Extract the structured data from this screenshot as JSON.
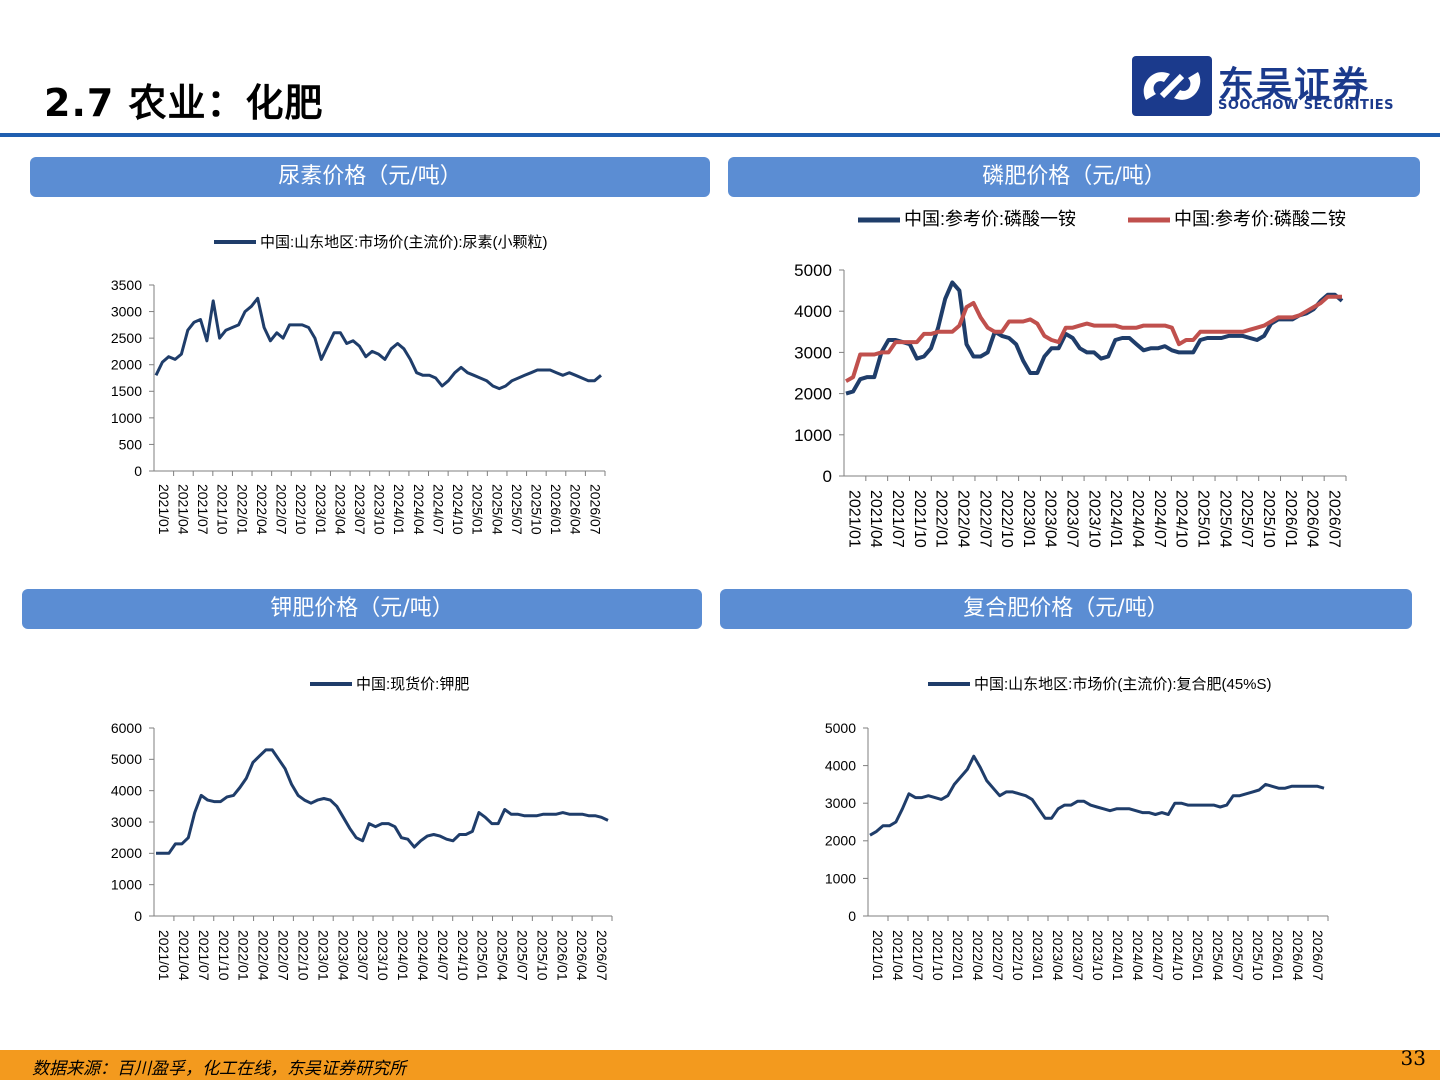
{
  "page": {
    "title": "2.7 农业：化肥",
    "logo_cn": "东吴证券",
    "logo_en": "SOOCHOW SECURITIES",
    "source": "数据来源：百川盈孚，化工在线，东吴证券研究所",
    "page_number": "33"
  },
  "panels": [
    {
      "header": "尿素价格（元/吨）"
    },
    {
      "header": "磷肥价格（元/吨）"
    },
    {
      "header": "钾肥价格（元/吨）"
    },
    {
      "header": "复合肥价格（元/吨）"
    }
  ],
  "colors": {
    "navy": "#1f3d6a",
    "red": "#c0504d",
    "header": "#5b8dd3",
    "footer": "#f39a1e"
  },
  "chart_data": [
    {
      "type": "line",
      "ylim": [
        0,
        3500
      ],
      "yticks": [
        "0",
        "500",
        "1000",
        "1500",
        "2000",
        "2500",
        "3000",
        "3500"
      ],
      "xticks": [
        "2021/01",
        "2021/04",
        "2021/07",
        "2021/10",
        "2022/01",
        "2022/04",
        "2022/07",
        "2022/10",
        "2023/01",
        "2023/04",
        "2023/07",
        "2023/10",
        "2024/01",
        "2024/04",
        "2024/07",
        "2024/10",
        "2025/01",
        "2025/04",
        "2025/07",
        "2025/10",
        "2026/01",
        "2026/04",
        "2026/07"
      ],
      "series": [
        {
          "name": "中国:山东地区:市场价(主流价):尿素(小颗粒)",
          "color": "#1f3d6a",
          "x": [
            0,
            1,
            2,
            3,
            4,
            5,
            6,
            7,
            8,
            9,
            10,
            11,
            12,
            13,
            14,
            15,
            16,
            17,
            18,
            19,
            20,
            21,
            22,
            23,
            24,
            25,
            26,
            27,
            28,
            29,
            30,
            31,
            32,
            33,
            34,
            35,
            36,
            37,
            38,
            39,
            40,
            41,
            42,
            43,
            44,
            45,
            46,
            47,
            48,
            49,
            50,
            51,
            52,
            53,
            54,
            55,
            56,
            57,
            58,
            59,
            60,
            61,
            62,
            63,
            64,
            65,
            66,
            67,
            68,
            69,
            70
          ],
          "values": [
            1800,
            2050,
            2150,
            2100,
            2200,
            2650,
            2800,
            2850,
            2450,
            3200,
            2500,
            2650,
            2700,
            2750,
            3000,
            3100,
            3250,
            2700,
            2450,
            2600,
            2500,
            2750,
            2750,
            2750,
            2700,
            2500,
            2100,
            2350,
            2600,
            2600,
            2400,
            2450,
            2350,
            2150,
            2250,
            2200,
            2100,
            2300,
            2400,
            2300,
            2100,
            1850,
            1800,
            1800,
            1750,
            1600,
            1700,
            1850,
            1950,
            1850,
            1800,
            1750,
            1700,
            1600,
            1550,
            1600,
            1700,
            1750,
            1800,
            1850,
            1900,
            1900,
            1900,
            1850,
            1800,
            1850,
            1800,
            1750,
            1700,
            1700,
            1800
          ]
        }
      ]
    },
    {
      "type": "line",
      "ylim": [
        0,
        5000
      ],
      "yticks": [
        "0",
        "1000",
        "2000",
        "3000",
        "4000",
        "5000"
      ],
      "xticks": [
        "2021/01",
        "2021/04",
        "2021/07",
        "2021/10",
        "2022/01",
        "2022/04",
        "2022/07",
        "2022/10",
        "2023/01",
        "2023/04",
        "2023/07",
        "2023/10",
        "2024/01",
        "2024/04",
        "2024/07",
        "2024/10",
        "2025/01",
        "2025/04",
        "2025/07",
        "2025/10",
        "2026/01",
        "2026/04",
        "2026/07"
      ],
      "series": [
        {
          "name": "中国:参考价:磷酸一铵",
          "color": "#1f3d6a",
          "x": [
            0,
            1,
            2,
            3,
            4,
            5,
            6,
            7,
            8,
            9,
            10,
            11,
            12,
            13,
            14,
            15,
            16,
            17,
            18,
            19,
            20,
            21,
            22,
            23,
            24,
            25,
            26,
            27,
            28,
            29,
            30,
            31,
            32,
            33,
            34,
            35,
            36,
            37,
            38,
            39,
            40,
            41,
            42,
            43,
            44,
            45,
            46,
            47,
            48,
            49,
            50,
            51,
            52,
            53,
            54,
            55,
            56,
            57,
            58,
            59,
            60,
            61,
            62,
            63,
            64,
            65,
            66,
            67,
            68,
            69,
            70
          ],
          "values": [
            2000,
            2050,
            2350,
            2400,
            2400,
            3000,
            3300,
            3300,
            3250,
            3200,
            2850,
            2900,
            3100,
            3600,
            4300,
            4700,
            4500,
            3200,
            2900,
            2900,
            3000,
            3500,
            3400,
            3350,
            3200,
            2800,
            2500,
            2500,
            2900,
            3100,
            3100,
            3450,
            3350,
            3100,
            3000,
            3000,
            2850,
            2900,
            3300,
            3350,
            3350,
            3200,
            3050,
            3100,
            3100,
            3150,
            3050,
            3000,
            3000,
            3000,
            3300,
            3350,
            3350,
            3350,
            3400,
            3400,
            3400,
            3350,
            3300,
            3400,
            3700,
            3800,
            3800,
            3800,
            3900,
            3950,
            4050,
            4250,
            4400,
            4400,
            4250
          ]
        },
        {
          "name": "中国:参考价:磷酸二铵",
          "color": "#c0504d",
          "x": [
            0,
            1,
            2,
            3,
            4,
            5,
            6,
            7,
            8,
            9,
            10,
            11,
            12,
            13,
            14,
            15,
            16,
            17,
            18,
            19,
            20,
            21,
            22,
            23,
            24,
            25,
            26,
            27,
            28,
            29,
            30,
            31,
            32,
            33,
            34,
            35,
            36,
            37,
            38,
            39,
            40,
            41,
            42,
            43,
            44,
            45,
            46,
            47,
            48,
            49,
            50,
            51,
            52,
            53,
            54,
            55,
            56,
            57,
            58,
            59,
            60,
            61,
            62,
            63,
            64,
            65,
            66,
            67,
            68,
            69,
            70
          ],
          "values": [
            2300,
            2400,
            2950,
            2950,
            2950,
            3000,
            3000,
            3250,
            3250,
            3250,
            3250,
            3450,
            3450,
            3500,
            3500,
            3500,
            3650,
            4100,
            4200,
            3850,
            3600,
            3500,
            3500,
            3750,
            3750,
            3750,
            3800,
            3700,
            3400,
            3300,
            3250,
            3600,
            3600,
            3650,
            3700,
            3650,
            3650,
            3650,
            3650,
            3600,
            3600,
            3600,
            3650,
            3650,
            3650,
            3650,
            3600,
            3200,
            3300,
            3300,
            3500,
            3500,
            3500,
            3500,
            3500,
            3500,
            3500,
            3550,
            3600,
            3650,
            3750,
            3850,
            3850,
            3850,
            3900,
            4000,
            4100,
            4200,
            4350,
            4350,
            4350
          ]
        }
      ]
    },
    {
      "type": "line",
      "ylim": [
        0,
        6000
      ],
      "yticks": [
        "0",
        "1000",
        "2000",
        "3000",
        "4000",
        "5000",
        "6000"
      ],
      "xticks": [
        "2021/01",
        "2021/04",
        "2021/07",
        "2021/10",
        "2022/01",
        "2022/04",
        "2022/07",
        "2022/10",
        "2023/01",
        "2023/04",
        "2023/07",
        "2023/10",
        "2024/01",
        "2024/04",
        "2024/07",
        "2024/10",
        "2025/01",
        "2025/04",
        "2025/07",
        "2025/10",
        "2026/01",
        "2026/04",
        "2026/07"
      ],
      "series": [
        {
          "name": "中国:现货价:钾肥",
          "color": "#1f3d6a",
          "x": [
            0,
            1,
            2,
            3,
            4,
            5,
            6,
            7,
            8,
            9,
            10,
            11,
            12,
            13,
            14,
            15,
            16,
            17,
            18,
            19,
            20,
            21,
            22,
            23,
            24,
            25,
            26,
            27,
            28,
            29,
            30,
            31,
            32,
            33,
            34,
            35,
            36,
            37,
            38,
            39,
            40,
            41,
            42,
            43,
            44,
            45,
            46,
            47,
            48,
            49,
            50,
            51,
            52,
            53,
            54,
            55,
            56,
            57,
            58,
            59,
            60,
            61,
            62,
            63,
            64,
            65,
            66,
            67,
            68,
            69,
            70
          ],
          "values": [
            2000,
            2000,
            2000,
            2300,
            2300,
            2500,
            3300,
            3850,
            3700,
            3650,
            3650,
            3800,
            3850,
            4100,
            4400,
            4900,
            5100,
            5300,
            5300,
            5000,
            4700,
            4200,
            3850,
            3700,
            3600,
            3700,
            3750,
            3700,
            3500,
            3150,
            2800,
            2500,
            2400,
            2950,
            2850,
            2950,
            2950,
            2850,
            2500,
            2450,
            2200,
            2400,
            2550,
            2600,
            2550,
            2450,
            2400,
            2600,
            2600,
            2700,
            3300,
            3150,
            2950,
            2950,
            3400,
            3250,
            3250,
            3200,
            3200,
            3200,
            3250,
            3250,
            3250,
            3300,
            3250,
            3250,
            3250,
            3200,
            3200,
            3150,
            3050
          ]
        }
      ]
    },
    {
      "type": "line",
      "ylim": [
        0,
        5000
      ],
      "yticks": [
        "0",
        "1000",
        "2000",
        "3000",
        "4000",
        "5000"
      ],
      "xticks": [
        "2021/01",
        "2021/04",
        "2021/07",
        "2021/10",
        "2022/01",
        "2022/04",
        "2022/07",
        "2022/10",
        "2023/01",
        "2023/04",
        "2023/07",
        "2023/10",
        "2024/01",
        "2024/04",
        "2024/07",
        "2024/10",
        "2025/01",
        "2025/04",
        "2025/07",
        "2025/10",
        "2026/01",
        "2026/04",
        "2026/07"
      ],
      "series": [
        {
          "name": "中国:山东地区:市场价(主流价):复合肥(45%S)",
          "color": "#1f3d6a",
          "x": [
            0,
            1,
            2,
            3,
            4,
            5,
            6,
            7,
            8,
            9,
            10,
            11,
            12,
            13,
            14,
            15,
            16,
            17,
            18,
            19,
            20,
            21,
            22,
            23,
            24,
            25,
            26,
            27,
            28,
            29,
            30,
            31,
            32,
            33,
            34,
            35,
            36,
            37,
            38,
            39,
            40,
            41,
            42,
            43,
            44,
            45,
            46,
            47,
            48,
            49,
            50,
            51,
            52,
            53,
            54,
            55,
            56,
            57,
            58,
            59,
            60,
            61,
            62,
            63,
            64,
            65,
            66,
            67,
            68,
            69,
            70
          ],
          "values": [
            2150,
            2250,
            2400,
            2400,
            2500,
            2850,
            3250,
            3150,
            3150,
            3200,
            3150,
            3100,
            3200,
            3500,
            3700,
            3900,
            4250,
            3950,
            3600,
            3400,
            3200,
            3300,
            3300,
            3250,
            3200,
            3100,
            2850,
            2600,
            2600,
            2850,
            2950,
            2950,
            3050,
            3050,
            2950,
            2900,
            2850,
            2800,
            2850,
            2850,
            2850,
            2800,
            2750,
            2750,
            2700,
            2750,
            2700,
            3000,
            3000,
            2950,
            2950,
            2950,
            2950,
            2950,
            2900,
            2950,
            3200,
            3200,
            3250,
            3300,
            3350,
            3500,
            3450,
            3400,
            3400,
            3450,
            3450,
            3450,
            3450,
            3450,
            3400
          ]
        }
      ]
    }
  ]
}
